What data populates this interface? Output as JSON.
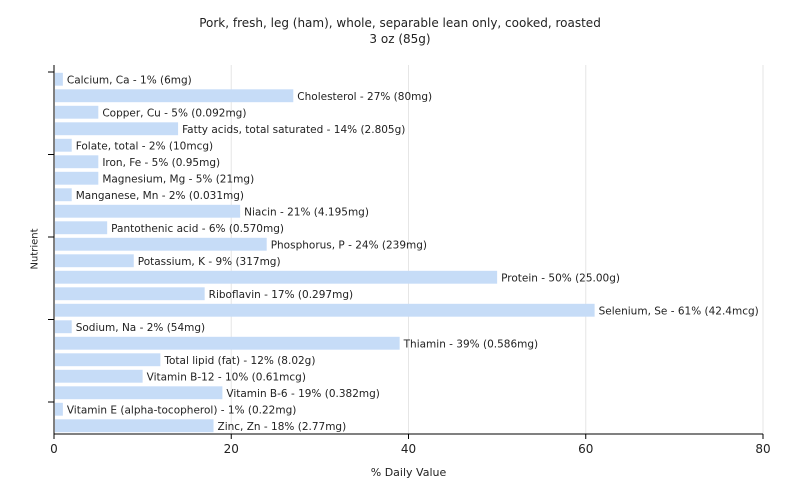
{
  "chart_data": {
    "type": "bar",
    "orientation": "horizontal",
    "title": "Pork, fresh, leg (ham), whole, separable lean only, cooked, roasted",
    "subtitle": "3 oz (85g)",
    "xlabel": "% Daily Value",
    "ylabel": "Nutrient",
    "xlim": [
      0,
      80
    ],
    "xticks": [
      "0",
      "20",
      "40",
      "60",
      "80"
    ],
    "grid": true,
    "bar_color": "#c6dcf7",
    "categories": [
      "Calcium, Ca",
      "Cholesterol",
      "Copper, Cu",
      "Fatty acids, total saturated",
      "Folate, total",
      "Iron, Fe",
      "Magnesium, Mg",
      "Manganese, Mn",
      "Niacin",
      "Pantothenic acid",
      "Phosphorus, P",
      "Potassium, K",
      "Protein",
      "Riboflavin",
      "Selenium, Se",
      "Sodium, Na",
      "Thiamin",
      "Total lipid (fat)",
      "Vitamin B-12",
      "Vitamin B-6",
      "Vitamin E (alpha-tocopherol)",
      "Zinc, Zn"
    ],
    "values": [
      1,
      27,
      5,
      14,
      2,
      5,
      5,
      2,
      21,
      6,
      24,
      9,
      50,
      17,
      61,
      2,
      39,
      12,
      10,
      19,
      1,
      18
    ],
    "labels": [
      "Calcium, Ca - 1% (6mg)",
      "Cholesterol - 27% (80mg)",
      "Copper, Cu - 5% (0.092mg)",
      "Fatty acids, total saturated - 14% (2.805g)",
      "Folate, total - 2% (10mcg)",
      "Iron, Fe - 5% (0.95mg)",
      "Magnesium, Mg - 5% (21mg)",
      "Manganese, Mn - 2% (0.031mg)",
      "Niacin - 21% (4.195mg)",
      "Pantothenic acid - 6% (0.570mg)",
      "Phosphorus, P - 24% (239mg)",
      "Potassium, K - 9% (317mg)",
      "Protein - 50% (25.00g)",
      "Riboflavin - 17% (0.297mg)",
      "Selenium, Se - 61% (42.4mcg)",
      "Sodium, Na - 2% (54mg)",
      "Thiamin - 39% (0.586mg)",
      "Total lipid (fat) - 12% (8.02g)",
      "Vitamin B-12 - 10% (0.61mcg)",
      "Vitamin B-6 - 19% (0.382mg)",
      "Vitamin E (alpha-tocopherol) - 1% (0.22mg)",
      "Zinc, Zn - 18% (2.77mg)"
    ]
  }
}
